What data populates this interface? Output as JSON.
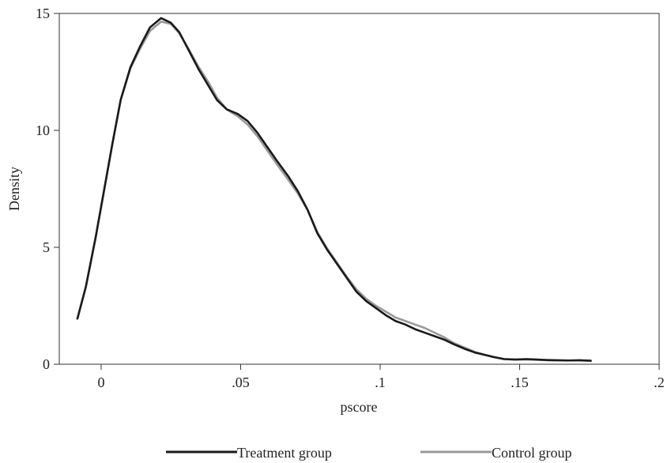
{
  "chart_data": {
    "type": "line",
    "xlabel": "pscore",
    "ylabel": "Density",
    "xlim": [
      -0.015,
      0.2
    ],
    "ylim": [
      0,
      15
    ],
    "x_ticks": [
      {
        "value": 0,
        "label": "0"
      },
      {
        "value": 0.05,
        "label": ".05"
      },
      {
        "value": 0.1,
        "label": ".1"
      },
      {
        "value": 0.15,
        "label": ".15"
      },
      {
        "value": 0.2,
        "label": ".2"
      }
    ],
    "y_ticks": [
      {
        "value": 0,
        "label": "0"
      },
      {
        "value": 5,
        "label": "5"
      },
      {
        "value": 10,
        "label": "10"
      },
      {
        "value": 15,
        "label": "15"
      }
    ],
    "grid": false,
    "legend_position": "bottom",
    "series": [
      {
        "name": "Treatment group",
        "color": "#1a1a1a",
        "x": [
          -0.0085,
          -0.0055,
          -0.002,
          0.001,
          0.004,
          0.007,
          0.0105,
          0.014,
          0.0175,
          0.0215,
          0.025,
          0.028,
          0.0315,
          0.035,
          0.0385,
          0.0415,
          0.045,
          0.049,
          0.0525,
          0.056,
          0.0595,
          0.063,
          0.067,
          0.0705,
          0.074,
          0.0775,
          0.081,
          0.0845,
          0.088,
          0.0915,
          0.095,
          0.0985,
          0.102,
          0.1055,
          0.109,
          0.1125,
          0.116,
          0.1195,
          0.123,
          0.1265,
          0.1305,
          0.134,
          0.1375,
          0.141,
          0.1445,
          0.1485,
          0.1525,
          0.156,
          0.16,
          0.1635,
          0.1675,
          0.1715,
          0.1755
        ],
        "y": [
          1.95,
          3.3,
          5.4,
          7.4,
          9.4,
          11.3,
          12.7,
          13.6,
          14.4,
          14.8,
          14.6,
          14.2,
          13.4,
          12.6,
          11.9,
          11.3,
          10.9,
          10.7,
          10.4,
          9.9,
          9.3,
          8.7,
          8.05,
          7.4,
          6.6,
          5.6,
          4.9,
          4.3,
          3.7,
          3.1,
          2.7,
          2.4,
          2.1,
          1.85,
          1.7,
          1.5,
          1.35,
          1.2,
          1.05,
          0.85,
          0.65,
          0.5,
          0.4,
          0.3,
          0.22,
          0.2,
          0.22,
          0.2,
          0.18,
          0.17,
          0.16,
          0.17,
          0.15
        ]
      },
      {
        "name": "Control group",
        "color": "#999999",
        "x": [
          -0.0085,
          -0.0055,
          -0.002,
          0.001,
          0.004,
          0.007,
          0.0105,
          0.014,
          0.0175,
          0.0215,
          0.025,
          0.028,
          0.0315,
          0.035,
          0.0385,
          0.0415,
          0.045,
          0.049,
          0.0525,
          0.056,
          0.0595,
          0.063,
          0.067,
          0.0705,
          0.074,
          0.0775,
          0.081,
          0.0845,
          0.088,
          0.0915,
          0.095,
          0.0985,
          0.102,
          0.1055,
          0.109,
          0.1125,
          0.116,
          0.1195,
          0.123,
          0.1265,
          0.1305,
          0.134,
          0.1375,
          0.141,
          0.1445,
          0.1485,
          0.1525,
          0.156,
          0.16,
          0.1635,
          0.1675,
          0.1715,
          0.1755
        ],
        "y": [
          1.95,
          3.3,
          5.4,
          7.4,
          9.4,
          11.3,
          12.65,
          13.5,
          14.25,
          14.65,
          14.55,
          14.15,
          13.45,
          12.7,
          12.05,
          11.4,
          10.9,
          10.6,
          10.25,
          9.75,
          9.15,
          8.55,
          7.9,
          7.3,
          6.6,
          5.65,
          4.95,
          4.35,
          3.75,
          3.2,
          2.8,
          2.5,
          2.25,
          2.0,
          1.85,
          1.7,
          1.55,
          1.35,
          1.15,
          0.9,
          0.7,
          0.52,
          0.4,
          0.3,
          0.22,
          0.2,
          0.2,
          0.19,
          0.17,
          0.16,
          0.16,
          0.16,
          0.15
        ]
      }
    ]
  }
}
